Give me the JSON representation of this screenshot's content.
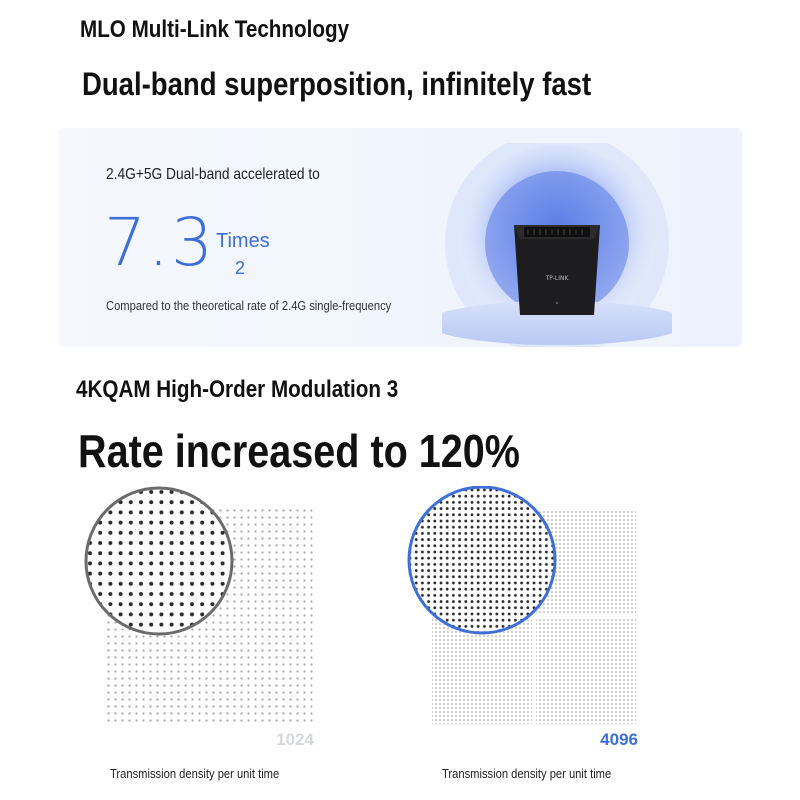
{
  "section1": {
    "title": "MLO Multi-Link Technology",
    "headline": "Dual-band superposition, infinitely fast",
    "card": {
      "subtitle": "2.4G+5G Dual-band accelerated to",
      "value": "7.3",
      "unit": "Times",
      "superscript": "2",
      "note": "Compared to the theoretical rate of 2.4G single-frequency",
      "device_logo": "TP-LINK"
    }
  },
  "section2": {
    "title": "4KQAM High-Order Modulation 3",
    "headline": "Rate increased to 120%",
    "left": {
      "qam_label": "1024",
      "caption": "Transmission density per unit time",
      "color": "#d6d8dc",
      "ring_color": "#6b6b6b"
    },
    "right": {
      "qam_label": "4096",
      "caption": "Transmission density per unit time",
      "color": "#3e6fd8",
      "ring_color": "#3e6fd8"
    }
  },
  "colors": {
    "accent": "#3e6fd8",
    "card_bg": "#eef3fc"
  }
}
